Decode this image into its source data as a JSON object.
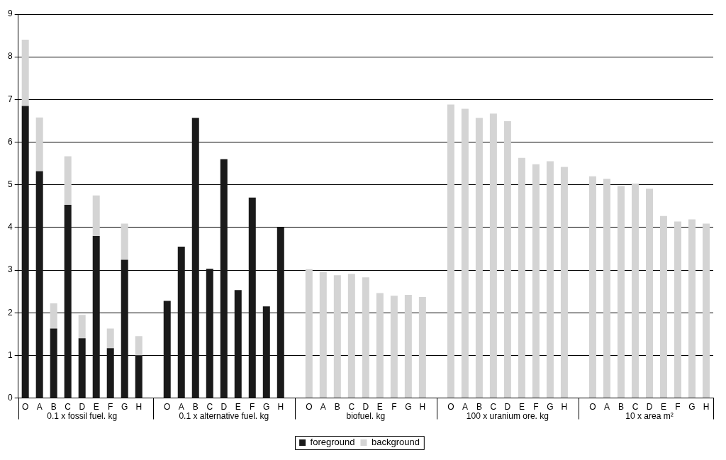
{
  "chart_data": {
    "type": "bar",
    "stacked": true,
    "grid": "y",
    "legend": "bottom",
    "categories": [
      "O",
      "A",
      "B",
      "C",
      "D",
      "E",
      "F",
      "G",
      "H",
      null,
      "O",
      "A",
      "B",
      "C",
      "D",
      "E",
      "F",
      "G",
      "H",
      null,
      "O",
      "A",
      "B",
      "C",
      "D",
      "E",
      "F",
      "G",
      "H",
      null,
      "O",
      "A",
      "B",
      "C",
      "D",
      "E",
      "F",
      "G",
      "H",
      null,
      "O",
      "A",
      "B",
      "C",
      "D",
      "E",
      "F",
      "G",
      "H"
    ],
    "annotations": [
      "0.1 x fossil fuel. kg",
      "0.1 x alternative fuel. kg",
      "biofuel. kg",
      "100 x uranium ore. kg",
      "10 x area m²"
    ],
    "ylim": [
      0,
      9
    ],
    "yticks": [
      0,
      1,
      2,
      3,
      4,
      5,
      6,
      7,
      8,
      9
    ],
    "series": [
      {
        "name": "foreground",
        "color": "#1a1a1a",
        "values": [
          6.85,
          5.32,
          1.63,
          4.53,
          1.4,
          3.8,
          1.17,
          3.24,
          1.0,
          null,
          2.28,
          3.55,
          6.57,
          3.03,
          5.6,
          2.53,
          4.7,
          2.15,
          4.0,
          null,
          null,
          null,
          null,
          null,
          null,
          null,
          null,
          null,
          null,
          null,
          null,
          null,
          null,
          null,
          null,
          null,
          null,
          null,
          null,
          null,
          null,
          null,
          null,
          null,
          null,
          null,
          null,
          null,
          null
        ]
      },
      {
        "name": "background",
        "color": "#d4d4d4",
        "values": [
          1.55,
          1.26,
          0.59,
          1.14,
          0.55,
          0.95,
          0.46,
          0.85,
          0.45,
          null,
          null,
          null,
          null,
          null,
          null,
          null,
          null,
          null,
          null,
          null,
          3.02,
          2.95,
          2.88,
          2.91,
          2.83,
          2.46,
          2.4,
          2.42,
          2.37,
          null,
          6.88,
          6.78,
          6.57,
          6.67,
          6.49,
          5.63,
          5.48,
          5.55,
          5.42,
          null,
          5.2,
          5.14,
          4.97,
          5.03,
          4.91,
          4.27,
          4.14,
          4.19,
          4.09
        ]
      }
    ]
  }
}
